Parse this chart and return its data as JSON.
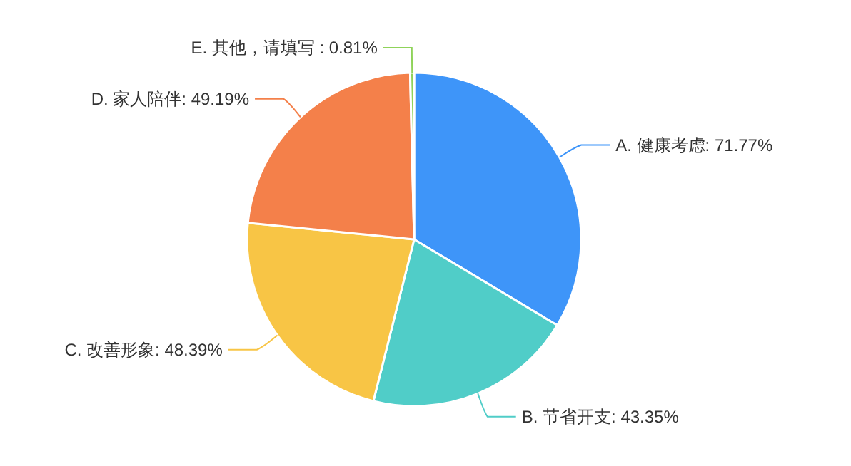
{
  "chart_data": {
    "type": "pie",
    "categories": [
      "A. 健康考虑",
      "B. 节省开支",
      "C. 改善形象",
      "D. 家人陪伴",
      "E. 其他，请填写 "
    ],
    "values": [
      71.77,
      43.35,
      48.39,
      49.19,
      0.81
    ],
    "value_labels": [
      "71.77%",
      "43.35%",
      "48.39%",
      "49.19%",
      "0.81%"
    ],
    "colors": [
      "#3e95f9",
      "#50cdc8",
      "#f8c545",
      "#f4804a",
      "#8fd35a"
    ]
  }
}
